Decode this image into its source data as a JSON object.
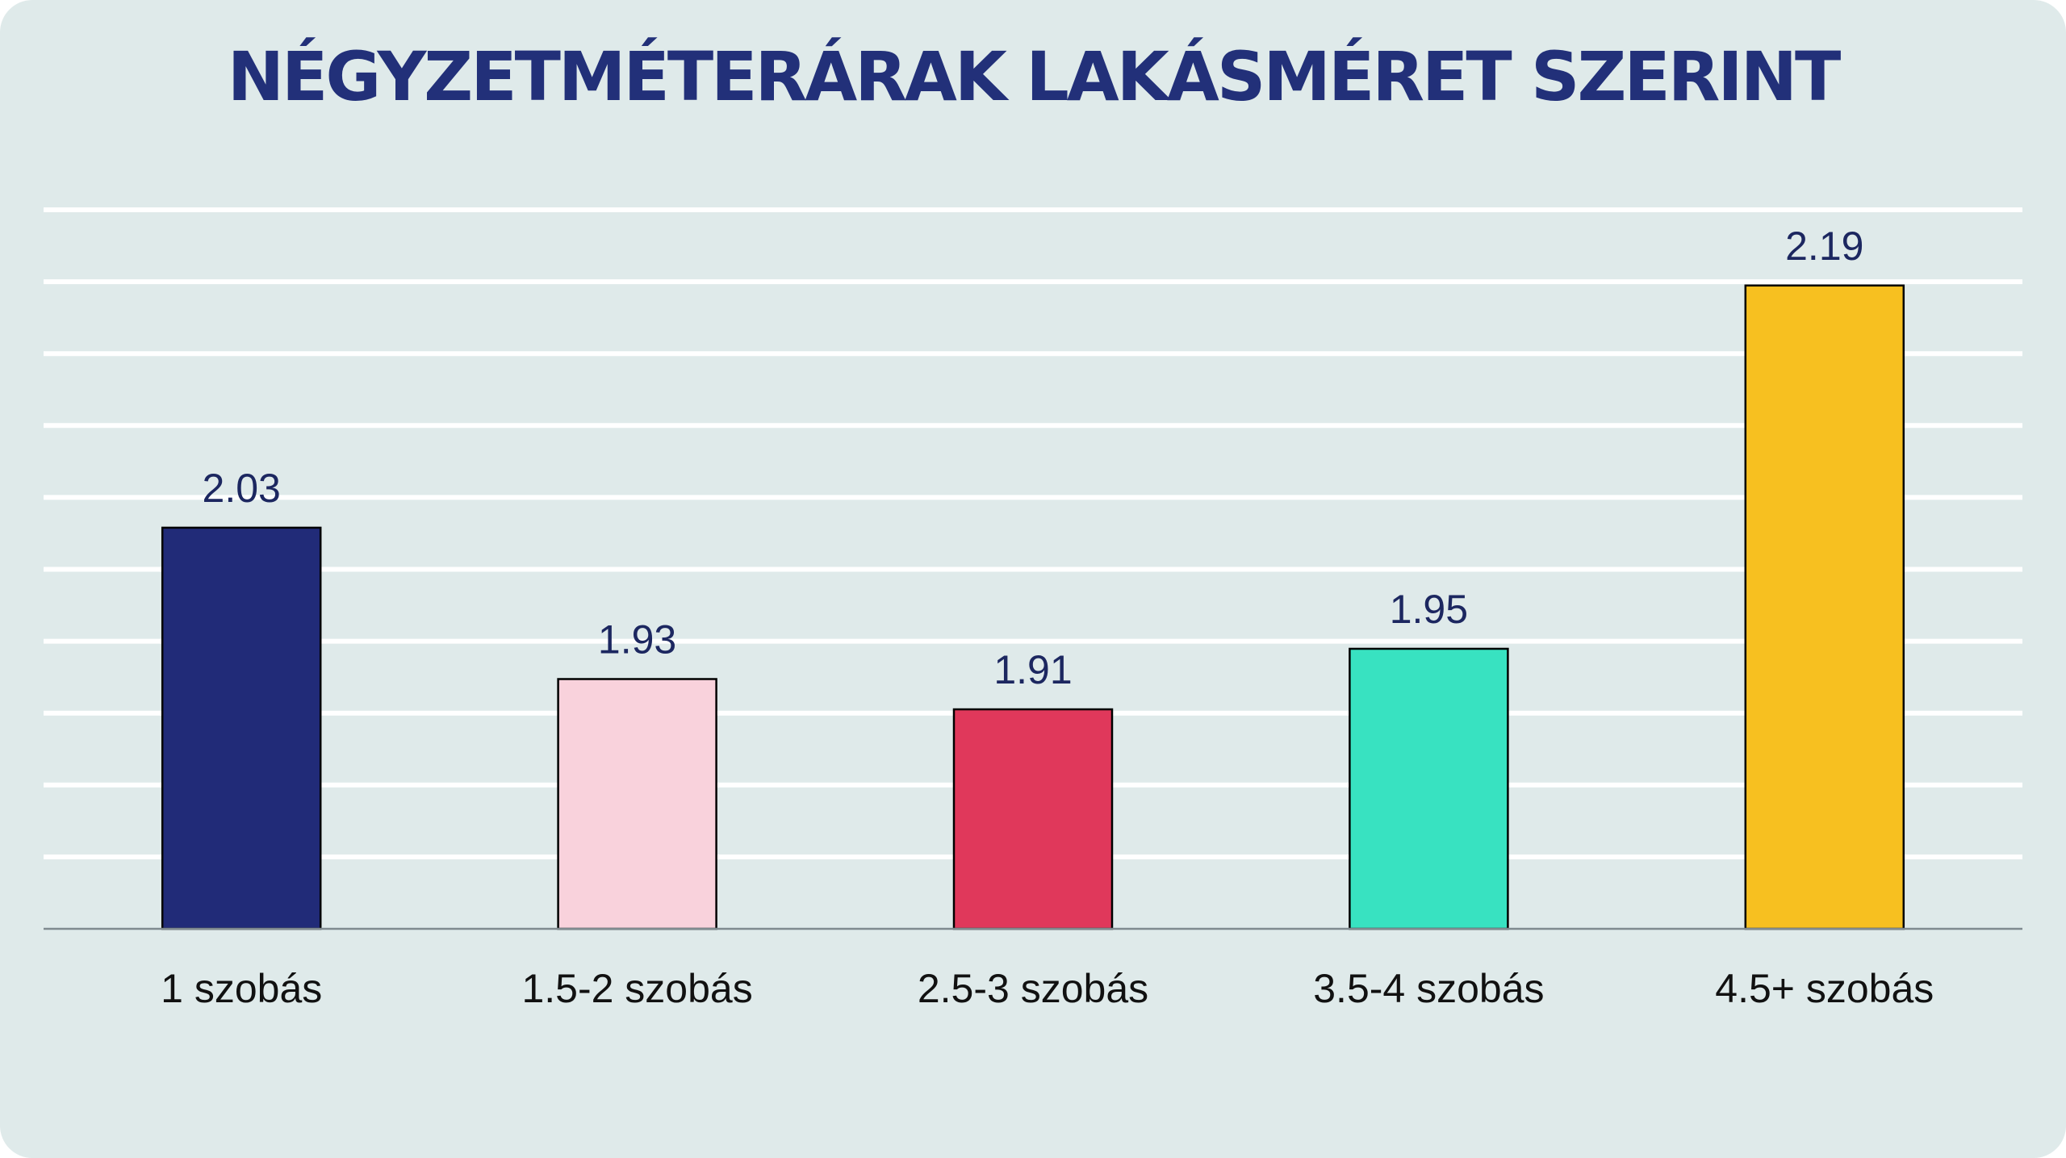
{
  "colors": {
    "background": "#dfeaea",
    "title": "#223079",
    "gridline": "#ffffff",
    "baseline": "#7f8a8f",
    "label_text": "#1c2760",
    "tick_text": "#111111"
  },
  "chart_data": {
    "type": "bar",
    "title": "NÉGYZETMÉTERÁRAK LAKÁSMÉRET SZERINT",
    "xlabel": "",
    "ylabel": "",
    "categories": [
      "1 szobás",
      "1.5-2 szobás",
      "2.5-3 szobás",
      "3.5-4 szobás",
      "4.5+ szobás"
    ],
    "values": [
      2.03,
      1.93,
      1.91,
      1.95,
      2.19
    ],
    "value_labels": [
      "2.03",
      "1.93",
      "1.91",
      "1.95",
      "2.19"
    ],
    "bar_colors": [
      "#212b78",
      "#f9d2dc",
      "#e0385b",
      "#38e2c1",
      "#f7c020"
    ],
    "ylim": [
      1.765,
      2.24
    ],
    "gridline_values": [
      1.765,
      1.8125,
      1.86,
      1.9075,
      1.955,
      2.0025,
      2.05,
      2.0975,
      2.145,
      2.1925,
      2.24
    ],
    "grid": true,
    "legend": "none",
    "y_axis_labels_shown": false
  }
}
